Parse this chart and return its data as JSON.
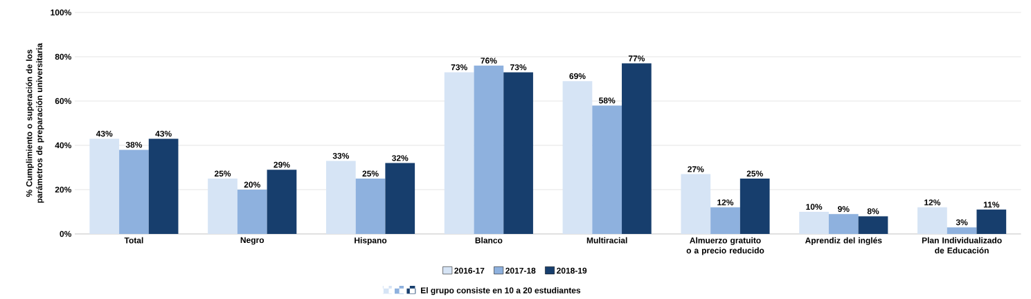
{
  "chart_data": {
    "type": "bar",
    "ylabel": "% Cumplimiento o superación de los parámetros de preparación universitaria",
    "categories": [
      "Total",
      "Negro",
      "Hispano",
      "Blanco",
      "Multiracial",
      "Almuerzo gratuito o a precio reducido",
      "Aprendiz del inglés",
      "Plan Individualizado de Educación"
    ],
    "series": [
      {
        "name": "2016-17",
        "color": "#d6e4f5",
        "values": [
          43,
          25,
          33,
          73,
          69,
          27,
          10,
          12
        ],
        "value_labels": [
          "43%",
          "25%",
          "33%",
          "73%",
          "69%",
          "27%",
          "10%",
          "12%"
        ]
      },
      {
        "name": "2017-18",
        "color": "#8eb1de",
        "values": [
          38,
          20,
          25,
          76,
          58,
          12,
          9,
          3
        ],
        "value_labels": [
          "38%",
          "20%",
          "25%",
          "76%",
          "58%",
          "12%",
          "9%",
          "3%"
        ]
      },
      {
        "name": "2018-19",
        "color": "#173e6d",
        "values": [
          43,
          29,
          32,
          73,
          77,
          25,
          8,
          11
        ],
        "value_labels": [
          "43%",
          "29%",
          "32%",
          "73%",
          "77%",
          "25%",
          "8%",
          "11%"
        ]
      }
    ],
    "ylim": [
      0,
      100
    ],
    "yticks": [
      {
        "value": 0,
        "label": "0%"
      },
      {
        "value": 20,
        "label": "20%"
      },
      {
        "value": 40,
        "label": "40%"
      },
      {
        "value": 60,
        "label": "60%"
      },
      {
        "value": 80,
        "label": "80%"
      },
      {
        "value": 100,
        "label": "100%"
      }
    ],
    "grid": "y",
    "legend": "bottom",
    "annotations": [
      "El grupo consiste en 10 a 20 estudiantes"
    ]
  }
}
